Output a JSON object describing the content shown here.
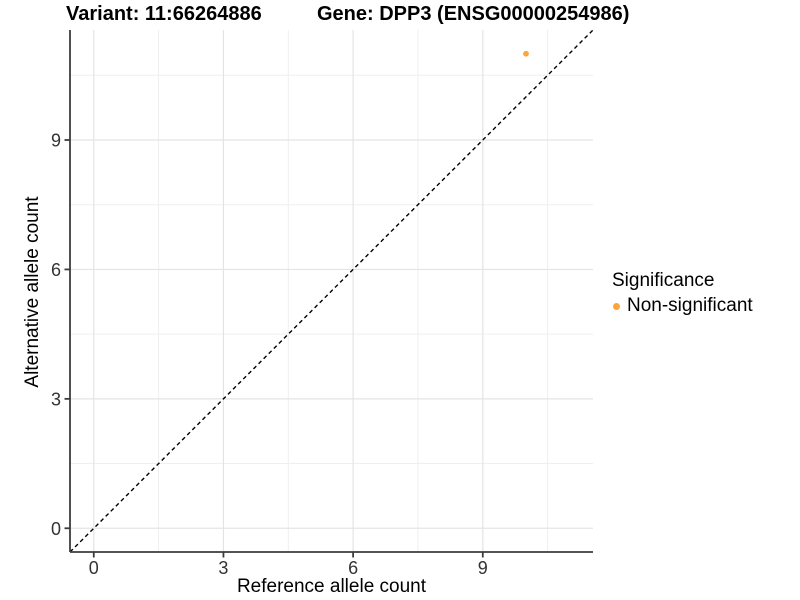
{
  "titles": {
    "variant": "Variant: 11:66264886",
    "gene": "Gene: DPP3 (ENSG00000254986)"
  },
  "chart_data": {
    "type": "scatter",
    "title_left": "Variant: 11:66264886",
    "title_right": "Gene: DPP3 (ENSG00000254986)",
    "xlabel": "Reference allele count",
    "ylabel": "Alternative allele count",
    "xticks": [
      0,
      3,
      6,
      9
    ],
    "yticks": [
      0,
      3,
      6,
      9
    ],
    "xlim": [
      -0.55,
      11.55
    ],
    "ylim": [
      -0.55,
      11.55
    ],
    "grid": "major+minor",
    "points": [
      {
        "x": 10,
        "y": 11,
        "series": "Non-significant"
      }
    ],
    "identity_line": {
      "type": "dashed",
      "slope": 1,
      "intercept": 0
    },
    "legend": {
      "title": "Significance",
      "position": "right",
      "items": [
        {
          "label": "Non-significant",
          "color": "#FAA53F"
        }
      ]
    },
    "style": {
      "point_color": "#FAA53F",
      "grid_major_color": "#e4e4e4",
      "grid_minor_color": "#efefef",
      "axis_color": "#3c3c3c",
      "tick_label_color": "#333333",
      "identity_line_color": "#000000",
      "background": "#ffffff"
    }
  }
}
